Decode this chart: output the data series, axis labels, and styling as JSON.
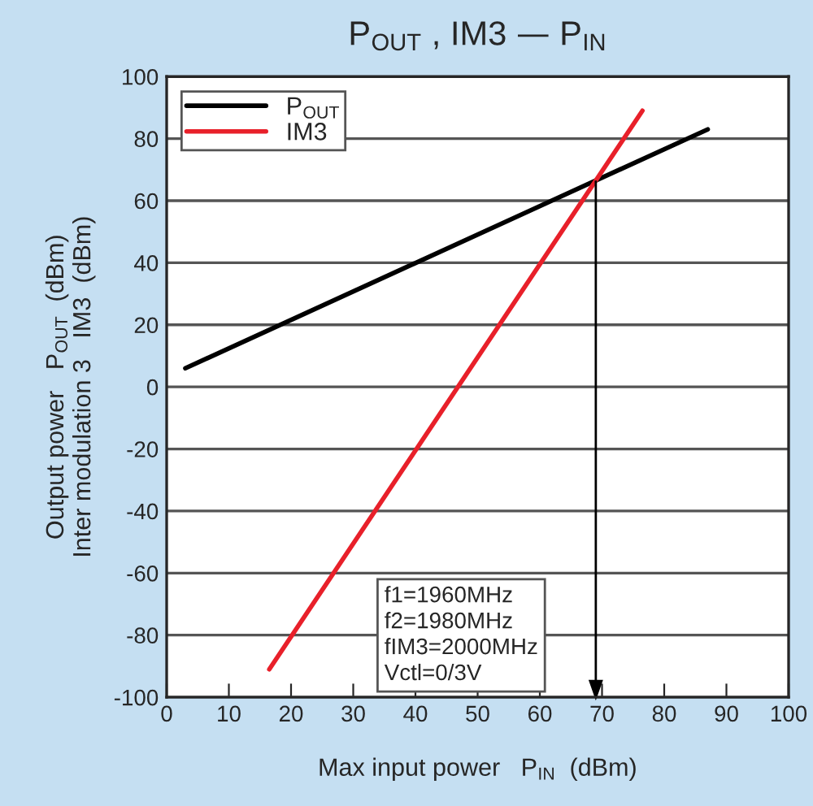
{
  "chart_data": {
    "type": "line",
    "title": "P$_{OUT}$ , IM3 — P$_{IN}$",
    "xlabel": "Max input power   P$_{IN}$  (dBm)",
    "ylabel": "Output power   P$_{OUT}$  (dBm)\nInter modulation 3   IM3  (dBm)",
    "series": [
      {
        "name": "P$_{OUT}$",
        "color": "#000000",
        "x": [
          3,
          87
        ],
        "values": [
          6,
          83
        ]
      },
      {
        "name": "IM3",
        "color": "#e8202a",
        "x": [
          16.5,
          76.5
        ],
        "values": [
          -91,
          89
        ]
      }
    ],
    "xlim": [
      0,
      100
    ],
    "xticks": [
      0,
      10,
      20,
      30,
      40,
      50,
      60,
      70,
      80,
      90,
      100
    ],
    "ylim": [
      -100,
      100
    ],
    "yticks": [
      -100,
      -80,
      -60,
      -40,
      -20,
      0,
      20,
      40,
      60,
      80,
      100
    ],
    "ref_lines": [
      {
        "axis": "x",
        "value": 69
      }
    ],
    "annotations": [
      "f1=1960MHz\nf2=1980MHz\nfIM3=2000MHz\nVctl=0/3V"
    ],
    "grid": "y",
    "legend": "top left",
    "line_style": "solid",
    "marker": "none"
  }
}
